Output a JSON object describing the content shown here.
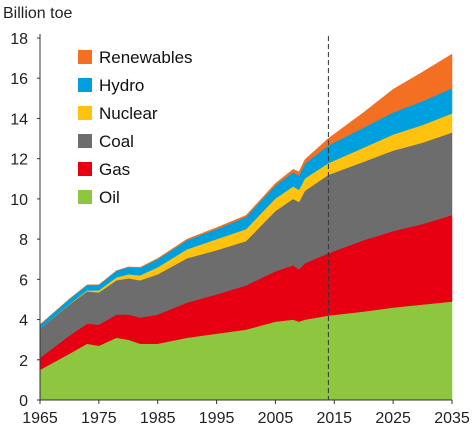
{
  "chart_data": {
    "type": "area",
    "stacked": true,
    "title": "",
    "ylabel": "Billion toe",
    "xlabel": "",
    "ylim": [
      0,
      18
    ],
    "xlim": [
      1965,
      2035
    ],
    "y_ticks": [
      0,
      2,
      4,
      6,
      8,
      10,
      12,
      14,
      16,
      18
    ],
    "x_ticks": [
      1965,
      1975,
      1985,
      1995,
      2005,
      2015,
      2025,
      2035
    ],
    "projection_marker_x": 2014,
    "legend_position": "top-left",
    "x": [
      1965,
      1970,
      1973,
      1975,
      1978,
      1980,
      1982,
      1985,
      1990,
      1995,
      2000,
      2005,
      2008,
      2009,
      2010,
      2014,
      2020,
      2025,
      2030,
      2035
    ],
    "series": [
      {
        "name": "Oil",
        "color": "#8dc63f",
        "values": [
          1.5,
          2.3,
          2.8,
          2.7,
          3.1,
          3.0,
          2.8,
          2.8,
          3.1,
          3.3,
          3.5,
          3.9,
          4.0,
          3.9,
          4.0,
          4.2,
          4.4,
          4.6,
          4.75,
          4.9
        ]
      },
      {
        "name": "Gas",
        "color": "#e60012",
        "values": [
          0.6,
          0.9,
          1.0,
          1.05,
          1.15,
          1.25,
          1.3,
          1.45,
          1.75,
          1.95,
          2.2,
          2.5,
          2.7,
          2.6,
          2.8,
          3.1,
          3.55,
          3.8,
          4.0,
          4.3
        ]
      },
      {
        "name": "Coal",
        "color": "#6d6d6d",
        "values": [
          1.45,
          1.55,
          1.6,
          1.6,
          1.7,
          1.8,
          1.85,
          2.0,
          2.2,
          2.2,
          2.2,
          3.0,
          3.3,
          3.35,
          3.6,
          3.9,
          3.9,
          4.0,
          4.05,
          4.1
        ]
      },
      {
        "name": "Nuclear",
        "color": "#ffc20e",
        "values": [
          0.0,
          0.02,
          0.05,
          0.1,
          0.15,
          0.2,
          0.25,
          0.35,
          0.45,
          0.55,
          0.6,
          0.62,
          0.62,
          0.6,
          0.62,
          0.58,
          0.7,
          0.8,
          0.88,
          0.95
        ]
      },
      {
        "name": "Hydro",
        "color": "#00a0df",
        "values": [
          0.2,
          0.25,
          0.27,
          0.28,
          0.33,
          0.35,
          0.37,
          0.4,
          0.45,
          0.5,
          0.6,
          0.65,
          0.7,
          0.72,
          0.74,
          0.88,
          1.0,
          1.1,
          1.18,
          1.25
        ]
      },
      {
        "name": "Renewables",
        "color": "#f36f21",
        "values": [
          0.0,
          0.0,
          0.0,
          0.0,
          0.0,
          0.02,
          0.03,
          0.04,
          0.05,
          0.07,
          0.08,
          0.1,
          0.15,
          0.18,
          0.2,
          0.35,
          0.75,
          1.15,
          1.45,
          1.7
        ]
      }
    ]
  }
}
